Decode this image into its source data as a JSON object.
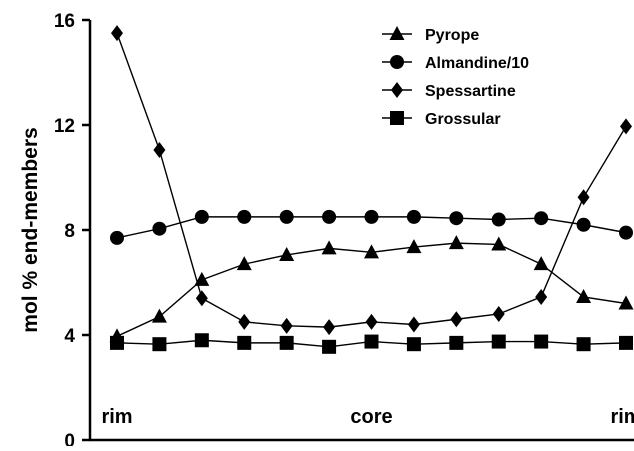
{
  "chart_data": {
    "type": "line",
    "title": "",
    "xlabel": "",
    "ylabel": "mol % end-members",
    "ylim": [
      0,
      16
    ],
    "yticks": [
      0,
      4,
      8,
      12,
      16
    ],
    "grid": false,
    "legend_position": "top-right",
    "x": [
      1,
      2,
      3,
      4,
      5,
      6,
      7,
      8,
      9,
      10,
      11,
      12,
      13
    ],
    "position_labels": [
      {
        "x": 1,
        "text": "rim"
      },
      {
        "x": 7,
        "text": "core"
      },
      {
        "x": 13,
        "text": "rim"
      }
    ],
    "series": [
      {
        "name": "Pyrope",
        "marker": "triangle",
        "values": [
          3.95,
          4.7,
          6.1,
          6.7,
          7.05,
          7.3,
          7.15,
          7.35,
          7.5,
          7.45,
          6.7,
          5.45,
          5.2
        ]
      },
      {
        "name": "Almandine/10",
        "marker": "circle",
        "values": [
          7.7,
          8.05,
          8.5,
          8.5,
          8.5,
          8.5,
          8.5,
          8.5,
          8.45,
          8.4,
          8.45,
          8.2,
          7.9
        ]
      },
      {
        "name": "Spessartine",
        "marker": "diamond",
        "values": [
          15.5,
          11.05,
          5.4,
          4.5,
          4.35,
          4.3,
          4.5,
          4.4,
          4.6,
          4.8,
          5.45,
          9.25,
          11.95
        ]
      },
      {
        "name": "Grossular",
        "marker": "square",
        "values": [
          3.7,
          3.65,
          3.8,
          3.7,
          3.7,
          3.55,
          3.75,
          3.65,
          3.7,
          3.75,
          3.75,
          3.65,
          3.7
        ]
      }
    ]
  }
}
